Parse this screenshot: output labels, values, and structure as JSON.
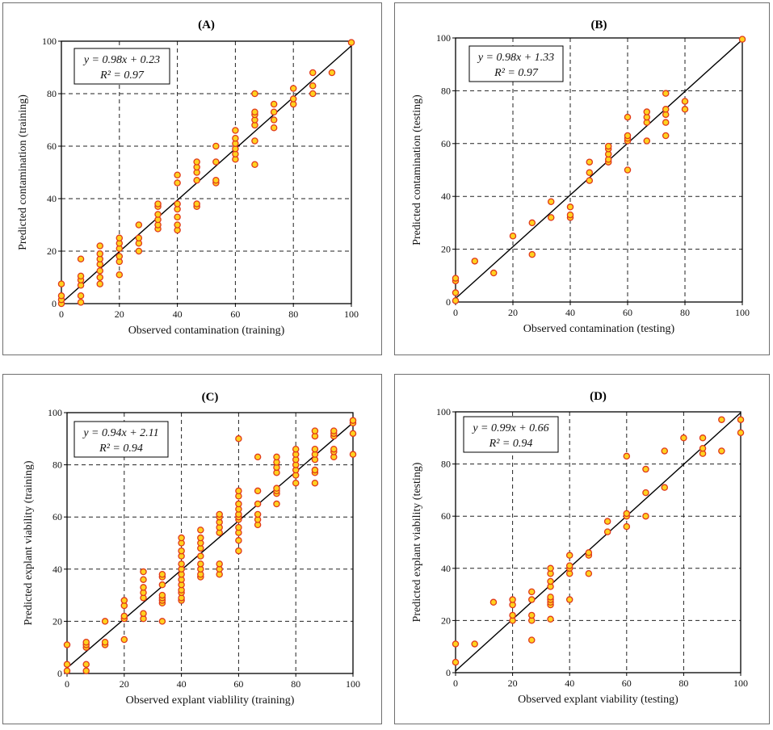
{
  "chart_data": [
    {
      "type": "scatter",
      "title": "(A)",
      "xlabel": "Observed contamination (training)",
      "ylabel": "Predicted contamination (training)",
      "xlim": [
        0,
        100
      ],
      "ylim": [
        0,
        100
      ],
      "xticks": [
        "0",
        "20",
        "40",
        "60",
        "80",
        "100"
      ],
      "yticks": [
        "0",
        "20",
        "40",
        "60",
        "80",
        "100"
      ],
      "grid": true,
      "equation": "y = 0.98x + 0.23",
      "r2": "R² = 0.97",
      "fit": {
        "slope": 0.98,
        "intercept": 0.23
      },
      "points": [
        [
          0,
          0
        ],
        [
          0,
          1.5
        ],
        [
          0,
          3
        ],
        [
          0,
          7.5
        ],
        [
          6.7,
          0.5
        ],
        [
          6.7,
          3
        ],
        [
          6.7,
          7
        ],
        [
          6.7,
          9
        ],
        [
          6.7,
          10.5
        ],
        [
          6.7,
          17
        ],
        [
          13.3,
          7.5
        ],
        [
          13.3,
          10
        ],
        [
          13.3,
          12.5
        ],
        [
          13.3,
          15
        ],
        [
          13.3,
          17
        ],
        [
          13.3,
          19
        ],
        [
          13.3,
          22
        ],
        [
          20,
          11
        ],
        [
          20,
          16
        ],
        [
          20,
          18
        ],
        [
          20,
          21
        ],
        [
          20,
          23
        ],
        [
          20,
          25
        ],
        [
          26.7,
          20
        ],
        [
          26.7,
          23
        ],
        [
          26.7,
          25
        ],
        [
          26.7,
          30
        ],
        [
          33.3,
          28.5
        ],
        [
          33.3,
          30
        ],
        [
          33.3,
          32
        ],
        [
          33.3,
          34
        ],
        [
          33.3,
          37
        ],
        [
          33.3,
          38
        ],
        [
          40,
          28
        ],
        [
          40,
          30
        ],
        [
          40,
          33
        ],
        [
          40,
          36
        ],
        [
          40,
          38
        ],
        [
          40,
          46
        ],
        [
          40,
          49
        ],
        [
          46.7,
          37
        ],
        [
          46.7,
          38
        ],
        [
          46.7,
          47
        ],
        [
          46.7,
          50
        ],
        [
          46.7,
          52
        ],
        [
          46.7,
          54
        ],
        [
          53.3,
          46
        ],
        [
          53.3,
          47
        ],
        [
          53.3,
          54
        ],
        [
          53.3,
          60
        ],
        [
          60,
          55
        ],
        [
          60,
          57
        ],
        [
          60,
          59
        ],
        [
          60,
          61
        ],
        [
          60,
          63
        ],
        [
          60,
          66
        ],
        [
          66.7,
          53
        ],
        [
          66.7,
          62
        ],
        [
          66.7,
          68
        ],
        [
          66.7,
          70
        ],
        [
          66.7,
          72
        ],
        [
          66.7,
          73
        ],
        [
          66.7,
          80
        ],
        [
          73.3,
          67
        ],
        [
          73.3,
          70
        ],
        [
          73.3,
          73
        ],
        [
          73.3,
          76
        ],
        [
          80,
          76
        ],
        [
          80,
          78
        ],
        [
          80,
          82
        ],
        [
          86.7,
          80
        ],
        [
          86.7,
          83
        ],
        [
          86.7,
          88
        ],
        [
          93.3,
          88
        ],
        [
          100,
          99.5
        ]
      ]
    },
    {
      "type": "scatter",
      "title": "(B)",
      "xlabel": "Observed contamination (testing)",
      "ylabel": "Predicted contamination (testing)",
      "xlim": [
        0,
        100
      ],
      "ylim": [
        0,
        100
      ],
      "xticks": [
        "0",
        "20",
        "40",
        "60",
        "80",
        "100"
      ],
      "yticks": [
        "0",
        "20",
        "40",
        "60",
        "80",
        "100"
      ],
      "grid": true,
      "equation": "y = 0.98x + 1.33",
      "r2": "R² = 0.97",
      "fit": {
        "slope": 0.98,
        "intercept": 1.33
      },
      "points": [
        [
          0,
          0.5
        ],
        [
          0,
          3.5
        ],
        [
          0,
          8
        ],
        [
          0,
          9
        ],
        [
          6.7,
          15.5
        ],
        [
          13.3,
          11
        ],
        [
          20,
          25
        ],
        [
          26.7,
          18
        ],
        [
          26.7,
          30
        ],
        [
          33.3,
          32
        ],
        [
          33.3,
          38
        ],
        [
          40,
          32
        ],
        [
          40,
          33
        ],
        [
          40,
          36
        ],
        [
          46.7,
          46
        ],
        [
          46.7,
          49
        ],
        [
          46.7,
          53
        ],
        [
          53.3,
          53
        ],
        [
          53.3,
          54
        ],
        [
          53.3,
          56
        ],
        [
          53.3,
          58
        ],
        [
          53.3,
          59
        ],
        [
          60,
          50
        ],
        [
          60,
          61
        ],
        [
          60,
          62
        ],
        [
          60,
          63
        ],
        [
          60,
          70
        ],
        [
          66.7,
          61
        ],
        [
          66.7,
          68
        ],
        [
          66.7,
          70
        ],
        [
          66.7,
          72
        ],
        [
          73.3,
          63
        ],
        [
          73.3,
          68
        ],
        [
          73.3,
          71
        ],
        [
          73.3,
          73
        ],
        [
          73.3,
          79
        ],
        [
          80,
          73
        ],
        [
          80,
          76
        ],
        [
          100,
          99.5
        ]
      ]
    },
    {
      "type": "scatter",
      "title": "(C)",
      "xlabel": "Observed explant viablility  (training)",
      "ylabel": "Predicted explant viability  (training)",
      "xlim": [
        0,
        100
      ],
      "ylim": [
        0,
        100
      ],
      "xticks": [
        "0",
        "20",
        "40",
        "60",
        "80",
        "100"
      ],
      "yticks": [
        "0",
        "20",
        "40",
        "60",
        "80",
        "100"
      ],
      "grid": true,
      "equation": "y = 0.94x + 2.11",
      "r2": "R² = 0.94",
      "fit": {
        "slope": 0.94,
        "intercept": 2.11
      },
      "points": [
        [
          0,
          1
        ],
        [
          0,
          3.5
        ],
        [
          0,
          11
        ],
        [
          6.7,
          1
        ],
        [
          6.7,
          3.5
        ],
        [
          6.7,
          10
        ],
        [
          6.7,
          11
        ],
        [
          6.7,
          12
        ],
        [
          13.3,
          11
        ],
        [
          13.3,
          12
        ],
        [
          13.3,
          20
        ],
        [
          20,
          13
        ],
        [
          20,
          21
        ],
        [
          20,
          22
        ],
        [
          20,
          26
        ],
        [
          20,
          28
        ],
        [
          26.7,
          21
        ],
        [
          26.7,
          23
        ],
        [
          26.7,
          29
        ],
        [
          26.7,
          31
        ],
        [
          26.7,
          33
        ],
        [
          26.7,
          36
        ],
        [
          26.7,
          39
        ],
        [
          33.3,
          20
        ],
        [
          33.3,
          27
        ],
        [
          33.3,
          28
        ],
        [
          33.3,
          29
        ],
        [
          33.3,
          30
        ],
        [
          33.3,
          34
        ],
        [
          33.3,
          37
        ],
        [
          33.3,
          38
        ],
        [
          40,
          28
        ],
        [
          40,
          29
        ],
        [
          40,
          31
        ],
        [
          40,
          32
        ],
        [
          40,
          34
        ],
        [
          40,
          36
        ],
        [
          40,
          38
        ],
        [
          40,
          40
        ],
        [
          40,
          42
        ],
        [
          40,
          45
        ],
        [
          40,
          47
        ],
        [
          40,
          50
        ],
        [
          40,
          52
        ],
        [
          46.7,
          37
        ],
        [
          46.7,
          38
        ],
        [
          46.7,
          40
        ],
        [
          46.7,
          42
        ],
        [
          46.7,
          45
        ],
        [
          46.7,
          48
        ],
        [
          46.7,
          50
        ],
        [
          46.7,
          52
        ],
        [
          46.7,
          55
        ],
        [
          53.3,
          38
        ],
        [
          53.3,
          40
        ],
        [
          53.3,
          42
        ],
        [
          53.3,
          54
        ],
        [
          53.3,
          56
        ],
        [
          53.3,
          58
        ],
        [
          53.3,
          60
        ],
        [
          53.3,
          61
        ],
        [
          60,
          47
        ],
        [
          60,
          51
        ],
        [
          60,
          54
        ],
        [
          60,
          56
        ],
        [
          60,
          59
        ],
        [
          60,
          60
        ],
        [
          60,
          61
        ],
        [
          60,
          63
        ],
        [
          60,
          65
        ],
        [
          60,
          68
        ],
        [
          60,
          70
        ],
        [
          60,
          90
        ],
        [
          66.7,
          57
        ],
        [
          66.7,
          59
        ],
        [
          66.7,
          61
        ],
        [
          66.7,
          65
        ],
        [
          66.7,
          70
        ],
        [
          66.7,
          83
        ],
        [
          73.3,
          65
        ],
        [
          73.3,
          69
        ],
        [
          73.3,
          70
        ],
        [
          73.3,
          71
        ],
        [
          73.3,
          77
        ],
        [
          73.3,
          79
        ],
        [
          73.3,
          81
        ],
        [
          73.3,
          83
        ],
        [
          80,
          73
        ],
        [
          80,
          76
        ],
        [
          80,
          78
        ],
        [
          80,
          80
        ],
        [
          80,
          82
        ],
        [
          80,
          84
        ],
        [
          80,
          86
        ],
        [
          86.7,
          73
        ],
        [
          86.7,
          77
        ],
        [
          86.7,
          78
        ],
        [
          86.7,
          82
        ],
        [
          86.7,
          84
        ],
        [
          86.7,
          86
        ],
        [
          86.7,
          91
        ],
        [
          86.7,
          93
        ],
        [
          93.3,
          83
        ],
        [
          93.3,
          85
        ],
        [
          93.3,
          86
        ],
        [
          93.3,
          91
        ],
        [
          93.3,
          92
        ],
        [
          93.3,
          93
        ],
        [
          100,
          84
        ],
        [
          100,
          92
        ],
        [
          100,
          96
        ],
        [
          100,
          97
        ]
      ]
    },
    {
      "type": "scatter",
      "title": "(D)",
      "xlabel": "Observed explant viability  (testing)",
      "ylabel": "Predicted explant viability  (testing)",
      "xlim": [
        0,
        100
      ],
      "ylim": [
        0,
        100
      ],
      "xticks": [
        "0",
        "20",
        "40",
        "60",
        "80",
        "100"
      ],
      "yticks": [
        "0",
        "20",
        "40",
        "60",
        "80",
        "100"
      ],
      "grid": true,
      "equation": "y = 0.99x + 0.66",
      "r2": "R² = 0.94",
      "fit": {
        "slope": 0.99,
        "intercept": 0.66
      },
      "points": [
        [
          0,
          4
        ],
        [
          0,
          11
        ],
        [
          6.7,
          11
        ],
        [
          13.3,
          27
        ],
        [
          20,
          20
        ],
        [
          20,
          22
        ],
        [
          20,
          26
        ],
        [
          20,
          28
        ],
        [
          26.7,
          12.5
        ],
        [
          26.7,
          20
        ],
        [
          26.7,
          22
        ],
        [
          26.7,
          28
        ],
        [
          26.7,
          31
        ],
        [
          33.3,
          20.5
        ],
        [
          33.3,
          26
        ],
        [
          33.3,
          27
        ],
        [
          33.3,
          28
        ],
        [
          33.3,
          29
        ],
        [
          33.3,
          33
        ],
        [
          33.3,
          35
        ],
        [
          33.3,
          38
        ],
        [
          33.3,
          40
        ],
        [
          40,
          28
        ],
        [
          40,
          38
        ],
        [
          40,
          40
        ],
        [
          40,
          41
        ],
        [
          40,
          45
        ],
        [
          46.7,
          38
        ],
        [
          46.7,
          45
        ],
        [
          46.7,
          46
        ],
        [
          53.3,
          54
        ],
        [
          53.3,
          58
        ],
        [
          60,
          56
        ],
        [
          60,
          60
        ],
        [
          60,
          61
        ],
        [
          60,
          83
        ],
        [
          66.7,
          60
        ],
        [
          66.7,
          69
        ],
        [
          66.7,
          78
        ],
        [
          73.3,
          71
        ],
        [
          73.3,
          85
        ],
        [
          80,
          90
        ],
        [
          86.7,
          84
        ],
        [
          86.7,
          86
        ],
        [
          86.7,
          90
        ],
        [
          93.3,
          85
        ],
        [
          93.3,
          97
        ],
        [
          100,
          92
        ],
        [
          100,
          97
        ]
      ]
    }
  ]
}
